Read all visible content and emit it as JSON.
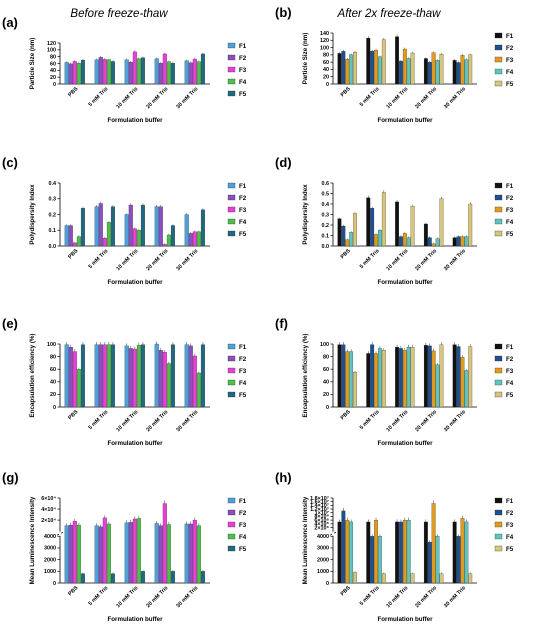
{
  "colors": {
    "set_a": [
      "#4da0d8",
      "#8c4fc0",
      "#e83fd6",
      "#4cc04a",
      "#1f6a80"
    ],
    "set_b": [
      "#111111",
      "#1f4f8f",
      "#e09a1e",
      "#5fc4bd",
      "#d8c47a"
    ]
  },
  "legend_labels": [
    "F1",
    "F2",
    "F3",
    "F4",
    "F5"
  ],
  "chart_data": [
    {
      "panel": "(a)",
      "title": "Before freeze-thaw",
      "type": "bar",
      "color_set": "set_a",
      "ylabel": "Particle Size (nm)",
      "xlabel": "Formulation buffer",
      "categories": [
        "PBS",
        "5 mM Tris",
        "10 mM Tris",
        "20 mM Tris",
        "30 mM Tris"
      ],
      "ylim": [
        0,
        120
      ],
      "yticks": [
        0,
        20,
        40,
        60,
        80,
        100,
        120
      ],
      "series": [
        {
          "name": "F1",
          "values": [
            63,
            71,
            71,
            74,
            68
          ]
        },
        {
          "name": "F2",
          "values": [
            59,
            78,
            64,
            61,
            62
          ]
        },
        {
          "name": "F3",
          "values": [
            66,
            72,
            94,
            88,
            73
          ]
        },
        {
          "name": "F4",
          "values": [
            61,
            71,
            74,
            65,
            65
          ]
        },
        {
          "name": "F5",
          "values": [
            70,
            66,
            77,
            61,
            88
          ]
        }
      ]
    },
    {
      "panel": "(b)",
      "title": "After 2x freeze-thaw",
      "type": "bar",
      "color_set": "set_b",
      "ylabel": "Particle Size (nm)",
      "xlabel": "Formulation buffer",
      "categories": [
        "PBS",
        "5 mM Tris",
        "10 mM Tris",
        "20 mM Tris",
        "30 mM Tris"
      ],
      "ylim": [
        0,
        140
      ],
      "yticks": [
        0,
        20,
        40,
        60,
        80,
        100,
        120,
        140
      ],
      "series": [
        {
          "name": "F1",
          "values": [
            84,
            126,
            130,
            70,
            65
          ]
        },
        {
          "name": "F2",
          "values": [
            90,
            90,
            63,
            60,
            59
          ]
        },
        {
          "name": "F3",
          "values": [
            68,
            93,
            96,
            86,
            79
          ]
        },
        {
          "name": "F4",
          "values": [
            80,
            75,
            70,
            65,
            67
          ]
        },
        {
          "name": "F5",
          "values": [
            87,
            122,
            85,
            82,
            80
          ]
        }
      ]
    },
    {
      "panel": "(c)",
      "title": "",
      "type": "bar",
      "color_set": "set_a",
      "ylabel": "Polydispersity Index",
      "xlabel": "Formulation buffer",
      "categories": [
        "PBS",
        "5 mM Tris",
        "10 mM Tris",
        "20 mM Tris",
        "30 mM Tris"
      ],
      "ylim": [
        0,
        0.4
      ],
      "yticks": [
        0.0,
        0.1,
        0.2,
        0.3,
        0.4
      ],
      "series": [
        {
          "name": "F1",
          "values": [
            0.13,
            0.25,
            0.2,
            0.25,
            0.2
          ]
        },
        {
          "name": "F2",
          "values": [
            0.13,
            0.27,
            0.26,
            0.25,
            0.08
          ]
        },
        {
          "name": "F3",
          "values": [
            0.02,
            0.05,
            0.11,
            0.01,
            0.09
          ]
        },
        {
          "name": "F4",
          "values": [
            0.06,
            0.15,
            0.1,
            0.07,
            0.09
          ]
        },
        {
          "name": "F5",
          "values": [
            0.24,
            0.25,
            0.26,
            0.13,
            0.23
          ]
        }
      ]
    },
    {
      "panel": "(d)",
      "title": "",
      "type": "bar",
      "color_set": "set_b",
      "ylabel": "Polydispersity Index",
      "xlabel": "Formulation buffer",
      "categories": [
        "PBS",
        "5 mM Tris",
        "10 mM Tris",
        "20 mM Tris",
        "30 mM Tris"
      ],
      "ylim": [
        0,
        0.6
      ],
      "yticks": [
        0.0,
        0.1,
        0.2,
        0.3,
        0.4,
        0.5,
        0.6
      ],
      "series": [
        {
          "name": "F1",
          "values": [
            0.26,
            0.46,
            0.42,
            0.21,
            0.08
          ]
        },
        {
          "name": "F2",
          "values": [
            0.19,
            0.36,
            0.09,
            0.08,
            0.09
          ]
        },
        {
          "name": "F3",
          "values": [
            0.06,
            0.11,
            0.12,
            0.02,
            0.09
          ]
        },
        {
          "name": "F4",
          "values": [
            0.13,
            0.15,
            0.08,
            0.07,
            0.09
          ]
        },
        {
          "name": "F5",
          "values": [
            0.31,
            0.51,
            0.38,
            0.45,
            0.4
          ]
        }
      ]
    },
    {
      "panel": "(e)",
      "title": "",
      "type": "bar",
      "color_set": "set_a",
      "ylabel": "Encapsulation efficiency (%)",
      "xlabel": "Formulation buffer",
      "categories": [
        "PBS",
        "5 mM Tris",
        "10 mM Tris",
        "20 mM Tris",
        "30 mM Tris"
      ],
      "ylim": [
        0,
        100
      ],
      "yticks": [
        0,
        20,
        40,
        60,
        80,
        100
      ],
      "series": [
        {
          "name": "F1",
          "values": [
            99,
            99,
            97,
            100,
            99
          ]
        },
        {
          "name": "F2",
          "values": [
            95,
            99,
            93,
            90,
            97
          ]
        },
        {
          "name": "F3",
          "values": [
            88,
            99,
            92,
            87,
            81
          ]
        },
        {
          "name": "F4",
          "values": [
            60,
            99,
            98,
            69,
            54
          ]
        },
        {
          "name": "F5",
          "values": [
            99,
            99,
            99,
            99,
            99
          ]
        }
      ]
    },
    {
      "panel": "(f)",
      "title": "",
      "type": "bar",
      "color_set": "set_b",
      "ylabel": "Encapsulation efficiency (%)",
      "xlabel": "Formulation buffer",
      "categories": [
        "PBS",
        "5 mM Tris",
        "10 mM Tris",
        "20 mM Tris",
        "30 mM Tris"
      ],
      "ylim": [
        0,
        100
      ],
      "yticks": [
        0,
        20,
        40,
        60,
        80,
        100
      ],
      "series": [
        {
          "name": "F1",
          "values": [
            99,
            85,
            95,
            98,
            99
          ]
        },
        {
          "name": "F2",
          "values": [
            99,
            99,
            93,
            97,
            96
          ]
        },
        {
          "name": "F3",
          "values": [
            88,
            85,
            90,
            89,
            79
          ]
        },
        {
          "name": "F4",
          "values": [
            88,
            93,
            95,
            67,
            58
          ]
        },
        {
          "name": "F5",
          "values": [
            55,
            90,
            95,
            99,
            96
          ]
        }
      ]
    },
    {
      "panel": "(g)",
      "title": "",
      "type": "bar",
      "color_set": "set_a",
      "ylabel": "Mean Luminescence Intensity",
      "xlabel": "Formulation buffer",
      "categories": [
        "PBS",
        "5 mM Tris",
        "10 mM Tris",
        "20 mM Tris",
        "30 mM Tris"
      ],
      "y_scale": "broken",
      "lower_range": [
        0,
        4000
      ],
      "upper_range": [
        0,
        60000
      ],
      "yticks_lower": [
        "0",
        "1000",
        "2000",
        "3000",
        "4000"
      ],
      "yticks_upper": [
        "2×10⁴",
        "4×10⁴",
        "6×10⁴"
      ],
      "series": [
        {
          "name": "F1",
          "values": [
            10000,
            10000,
            15000,
            14000,
            13000
          ]
        },
        {
          "name": "F2",
          "values": [
            11000,
            8000,
            16000,
            10000,
            13000
          ]
        },
        {
          "name": "F3",
          "values": [
            18000,
            24000,
            22000,
            50000,
            20000
          ]
        },
        {
          "name": "F4",
          "values": [
            11000,
            13000,
            23000,
            12000,
            10000
          ]
        },
        {
          "name": "F5",
          "values": [
            800,
            800,
            1000,
            1000,
            1000
          ]
        }
      ]
    },
    {
      "panel": "(h)",
      "title": "",
      "type": "bar",
      "color_set": "set_b",
      "ylabel": "Mean Luminescence Intensity",
      "xlabel": "Formulation buffer",
      "categories": [
        "PBS",
        "5 mM Tris",
        "10 mM Tris",
        "20 mM Tris",
        "30 mM Tris"
      ],
      "y_scale": "broken",
      "lower_range": [
        0,
        4000
      ],
      "upper_range": [
        0,
        18000
      ],
      "yticks_lower": [
        "0",
        "1000",
        "2000",
        "3000",
        "4000"
      ],
      "yticks_upper": [
        "2×10⁶",
        "4×10⁶",
        "6×10⁶",
        "8×10⁶",
        "1×10⁷",
        "1.2×10⁷",
        "1.4×10⁷",
        "1.6×10⁷",
        "1.8×10⁷"
      ],
      "series": [
        {
          "name": "F1",
          "values": [
            5000,
            5000,
            5000,
            5000,
            5000
          ]
        },
        {
          "name": "F2",
          "values": [
            11000,
            4000,
            5000,
            3500,
            4000
          ]
        },
        {
          "name": "F3",
          "values": [
            6000,
            6000,
            6000,
            15000,
            7000
          ]
        },
        {
          "name": "F4",
          "values": [
            5000,
            4000,
            6000,
            4000,
            5000
          ]
        },
        {
          "name": "F5",
          "values": [
            900,
            800,
            800,
            800,
            800
          ]
        }
      ]
    }
  ]
}
